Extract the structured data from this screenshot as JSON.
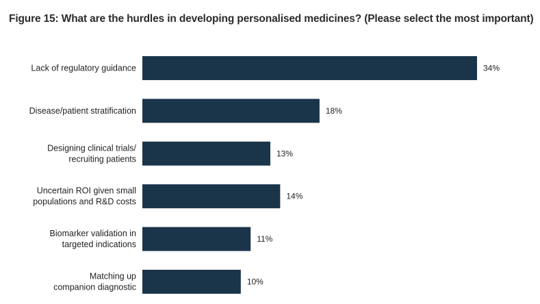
{
  "title": "Figure 15: What are the hurdles in developing personalised medicines? (Please select the most important)",
  "colors": {
    "bar": "#1a344a",
    "text": "#222222"
  },
  "chart_data": {
    "type": "bar",
    "orientation": "horizontal",
    "title": "Figure 15: What are the hurdles in developing personalised medicines? (Please select the most important)",
    "categories": [
      [
        "Lack of regulatory guidance"
      ],
      [
        "Disease/patient stratification"
      ],
      [
        "Designing clinical trials/",
        "recruiting patients"
      ],
      [
        "Uncertain ROI given small",
        "populations and R&D costs"
      ],
      [
        "Biomarker validation in",
        "targeted indications"
      ],
      [
        "Matching up",
        "companion diagnostic"
      ]
    ],
    "values": [
      34,
      18,
      13,
      14,
      11,
      10
    ],
    "value_labels": [
      "34%",
      "18%",
      "13%",
      "14%",
      "11%",
      "10%"
    ],
    "unit": "%",
    "xlim": [
      0,
      34
    ],
    "grid": false,
    "legend": "none"
  }
}
